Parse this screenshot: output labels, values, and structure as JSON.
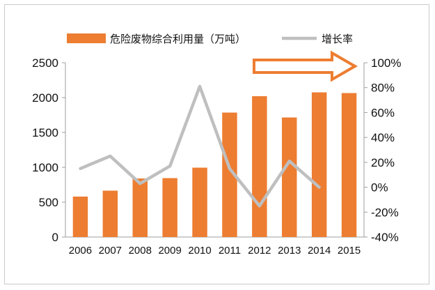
{
  "chart_data": {
    "type": "bar",
    "categories": [
      "2006",
      "2007",
      "2008",
      "2009",
      "2010",
      "2011",
      "2012",
      "2013",
      "2014",
      "2015"
    ],
    "series": [
      {
        "name": "危险废物综合利用量（万吨）",
        "type": "bar",
        "axis": "left",
        "color": "#ED7D31",
        "values": [
          580,
          665,
          840,
          845,
          995,
          1785,
          2020,
          1715,
          2075,
          2065
        ]
      },
      {
        "name": "增长率",
        "type": "line",
        "axis": "right",
        "color": "#BFBFBF",
        "values": [
          15,
          25,
          3,
          17,
          81,
          15,
          -15,
          21,
          0,
          null
        ]
      }
    ],
    "y_left": {
      "range": [
        0,
        2500
      ],
      "ticks": [
        "0",
        "500",
        "1000",
        "1500",
        "2000",
        "2500"
      ]
    },
    "y_right": {
      "range": [
        -40,
        100
      ],
      "ticks": [
        "-40%",
        "-20%",
        "0%",
        "20%",
        "40%",
        "60%",
        "80%",
        "100%"
      ]
    },
    "legend_position": "top",
    "grid": false,
    "annotation": "right-pointing orange outlined arrow, upper right"
  },
  "colors": {
    "bar": "#ED7D31",
    "line": "#BFBFBF",
    "arrow": "#ED7D31",
    "axis": "#9e9e9e",
    "frame": "#c9c9c9"
  }
}
